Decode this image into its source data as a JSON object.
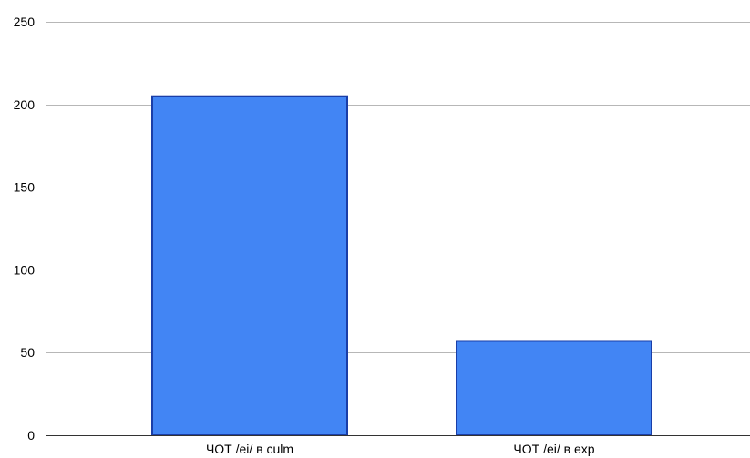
{
  "chart_data": {
    "type": "bar",
    "title": "",
    "xlabel": "",
    "ylabel": "",
    "categories": [
      "ЧОТ /ei/ в culm",
      "ЧОТ /ei/ в exp"
    ],
    "values": [
      205,
      57
    ],
    "ylim": [
      0,
      250
    ],
    "yticks": [
      0,
      50,
      100,
      150,
      200,
      250
    ],
    "ytick_labels": [
      "0",
      "50",
      "100",
      "150",
      "200",
      "250"
    ],
    "grid": true,
    "legend": "none",
    "colors": {
      "bar_fill": "#4285f4",
      "bar_stroke": "#1a3ea8",
      "gridline": "#b7b7b7",
      "axis": "#333333"
    }
  }
}
